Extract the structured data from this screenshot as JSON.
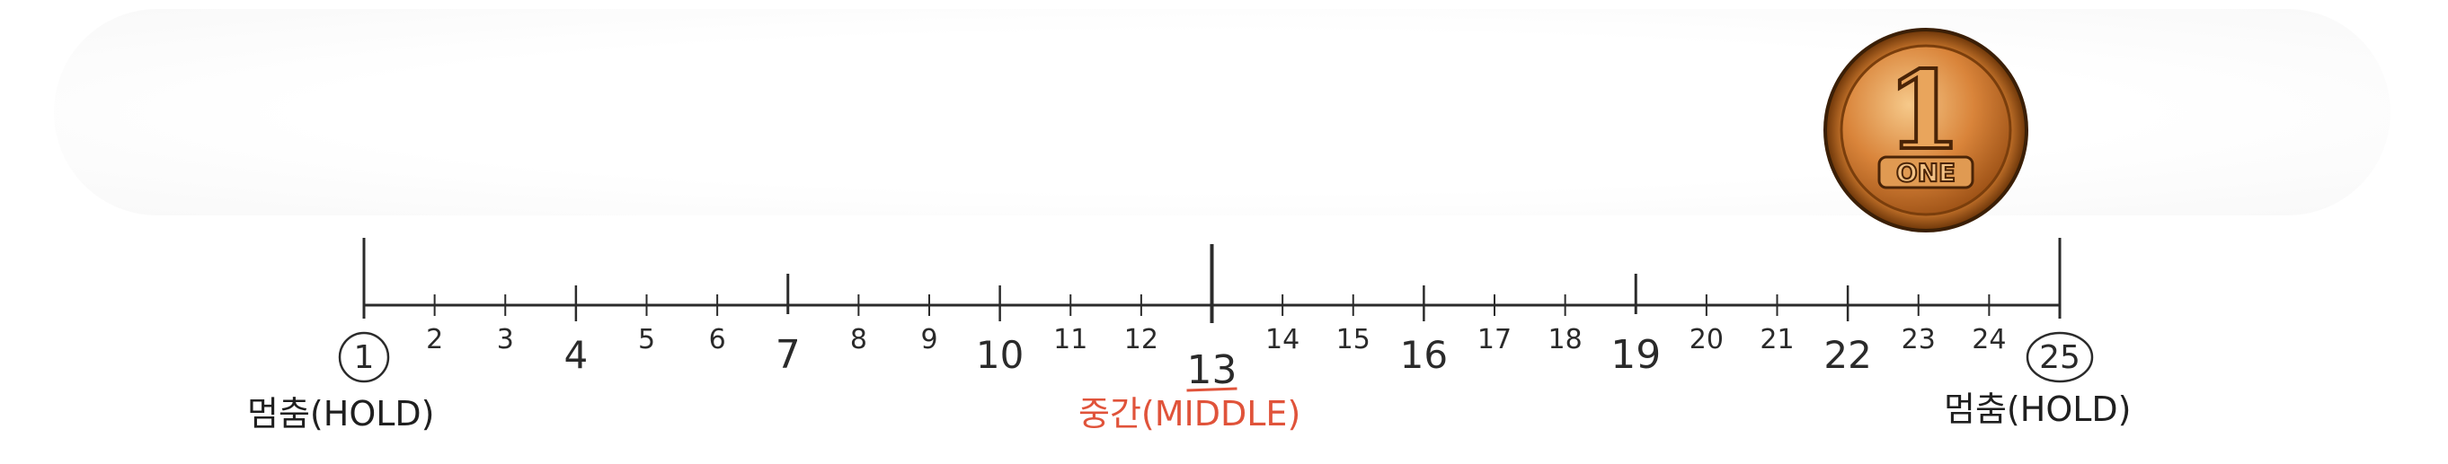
{
  "ruler": {
    "start": 1,
    "end": 25,
    "major_marks": [
      1,
      7,
      13,
      19,
      25
    ],
    "medium_marks": [
      4,
      10,
      16,
      22
    ],
    "circled_numbers": [
      1,
      25
    ],
    "underlined_numbers": [
      13
    ],
    "line_color": "#2b2b2b"
  },
  "labels": {
    "left": "멈춤(HOLD)",
    "middle": "중간(MIDDLE)",
    "right": "멈춤(HOLD)",
    "middle_color": "#e0533a"
  },
  "coin": {
    "numeral": "1",
    "word": "ONE",
    "colors": {
      "rim": "#8a4a12",
      "face": "#d98a3a",
      "highlight": "#f3c27a"
    }
  }
}
